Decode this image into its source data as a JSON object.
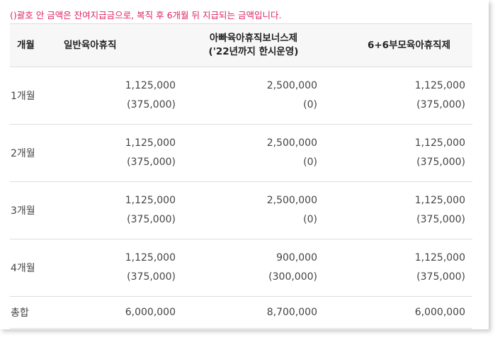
{
  "note": "()괄호 안 금액은 잔여지급금으로, 복직 후 6개월 뒤 지급되는 금액입니다.",
  "table": {
    "headers": {
      "month": "개월",
      "general": "일반육아휴직",
      "dad_line1": "아빠육아휴직보너스제",
      "dad_line2": "('22년까지 한시운영)",
      "parents": "6+6부모육아휴직제"
    },
    "rows": [
      {
        "label": "1개월",
        "general": "1,125,000",
        "general_sub": "(375,000)",
        "dad": "2,500,000",
        "dad_sub": "(0)",
        "parents": "1,125,000",
        "parents_sub": "(375,000)"
      },
      {
        "label": "2개월",
        "general": "1,125,000",
        "general_sub": "(375,000)",
        "dad": "2,500,000",
        "dad_sub": "(0)",
        "parents": "1,125,000",
        "parents_sub": "(375,000)"
      },
      {
        "label": "3개월",
        "general": "1,125,000",
        "general_sub": "(375,000)",
        "dad": "2,500,000",
        "dad_sub": "(0)",
        "parents": "1,125,000",
        "parents_sub": "(375,000)"
      },
      {
        "label": "4개월",
        "general": "1,125,000",
        "general_sub": "(375,000)",
        "dad": "900,000",
        "dad_sub": "(300,000)",
        "parents": "1,125,000",
        "parents_sub": "(375,000)"
      }
    ],
    "total": {
      "label": "총합",
      "general": "6,000,000",
      "dad": "8,700,000",
      "parents": "6,000,000"
    }
  },
  "colors": {
    "note": "#e0245e",
    "header_bg": "#f7f7f7",
    "border": "#dddddd"
  }
}
